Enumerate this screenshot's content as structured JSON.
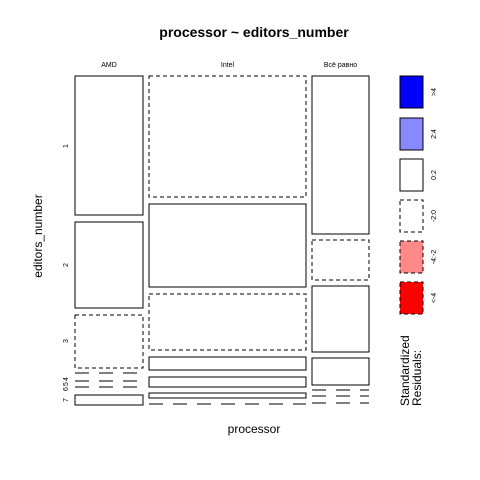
{
  "chart_data": {
    "type": "mosaic",
    "title": "processor ~ editors_number",
    "xlabel": "processor",
    "ylabel": "editors_number",
    "categories": [
      "AMD",
      "Intel",
      "Всё равно"
    ],
    "levels": [
      "1",
      "2",
      "3",
      "4",
      "5",
      "6",
      "7"
    ],
    "column_proportions": [
      0.238,
      0.534,
      0.196
    ],
    "cells": [
      {
        "processor": "AMD",
        "counts": [
          0.393,
          0.245,
          0.156,
          0.0,
          0.0,
          0.0,
          0.033
        ],
        "residual_class": [
          "0:2",
          "0:2",
          "-2:0",
          "-2:0",
          "-2:0",
          "-2:0",
          "0:2"
        ]
      },
      {
        "processor": "Intel",
        "counts": [
          0.382,
          0.267,
          0.184,
          0.036,
          0.024,
          0.024,
          0.0
        ],
        "residual_class": [
          "-2:0",
          "0:2",
          "-2:0",
          "0:2",
          "0:2",
          "0:2",
          "-2:0"
        ]
      },
      {
        "processor": "Всё равно",
        "counts": [
          0.484,
          0.139,
          0.224,
          0.084,
          0.0,
          0.0,
          0.0
        ],
        "residual_class": [
          "0:2",
          "-2:0",
          "0:2",
          "0:2",
          "-2:0",
          "-2:0",
          "-2:0"
        ]
      }
    ],
    "legend": {
      "title": "Standardized\nResiduals:",
      "entries": [
        {
          "label": ">4",
          "color": "#0000ff",
          "dashed": false
        },
        {
          "label": "2:4",
          "color": "#8888ff",
          "dashed": false
        },
        {
          "label": "0:2",
          "color": "#ffffff",
          "dashed": false
        },
        {
          "label": "-2:0",
          "color": "#ffffff",
          "dashed": true
        },
        {
          "label": "-4:-2",
          "color": "#ff8888",
          "dashed": true
        },
        {
          "label": "<-4",
          "color": "#ff0000",
          "dashed": true
        }
      ]
    },
    "y_tick_labels": [
      "1",
      "2",
      "3",
      "4",
      "5",
      "6",
      "7"
    ]
  }
}
